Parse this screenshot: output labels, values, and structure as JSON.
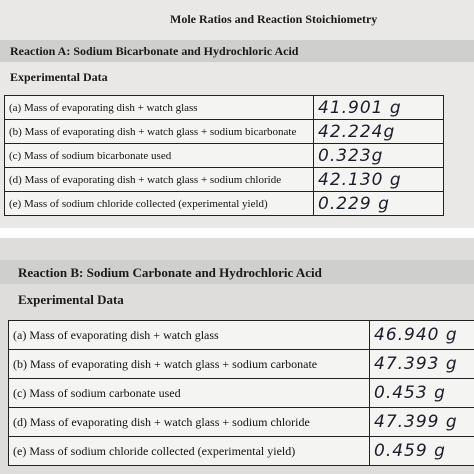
{
  "reaction_a": {
    "title": "Mole Ratios and Reaction Stoichiometry",
    "heading": "Reaction A: Sodium Bicarbonate and Hydrochloric Acid",
    "subheading": "Experimental Data",
    "rows": [
      {
        "label": "(a) Mass of evaporating dish + watch glass",
        "value": "41.901 g"
      },
      {
        "label": "(b) Mass of evaporating dish + watch glass + sodium bicarbonate",
        "value": "42.224g"
      },
      {
        "label": "(c) Mass of sodium bicarbonate used",
        "value": "0.323g"
      },
      {
        "label": "(d) Mass of evaporating dish + watch glass + sodium chloride",
        "value": "42.130 g"
      },
      {
        "label": "(e) Mass of sodium chloride collected (experimental yield)",
        "value": "0.229 g"
      }
    ]
  },
  "reaction_b": {
    "heading": "Reaction B:  Sodium Carbonate and Hydrochloric Acid",
    "subheading": "Experimental Data",
    "rows": [
      {
        "label": "(a) Mass of evaporating dish + watch glass",
        "value": "46.940 g"
      },
      {
        "label": "(b) Mass of evaporating dish + watch glass + sodium carbonate",
        "value": "47.393 g"
      },
      {
        "label": "(c) Mass of sodium carbonate used",
        "value": "0.453 g"
      },
      {
        "label": "(d) Mass of evaporating dish + watch glass + sodium chloride",
        "value": "47.399 g"
      },
      {
        "label": "(e) Mass of sodium chloride collected (experimental yield)",
        "value": "0.459 g"
      }
    ]
  }
}
